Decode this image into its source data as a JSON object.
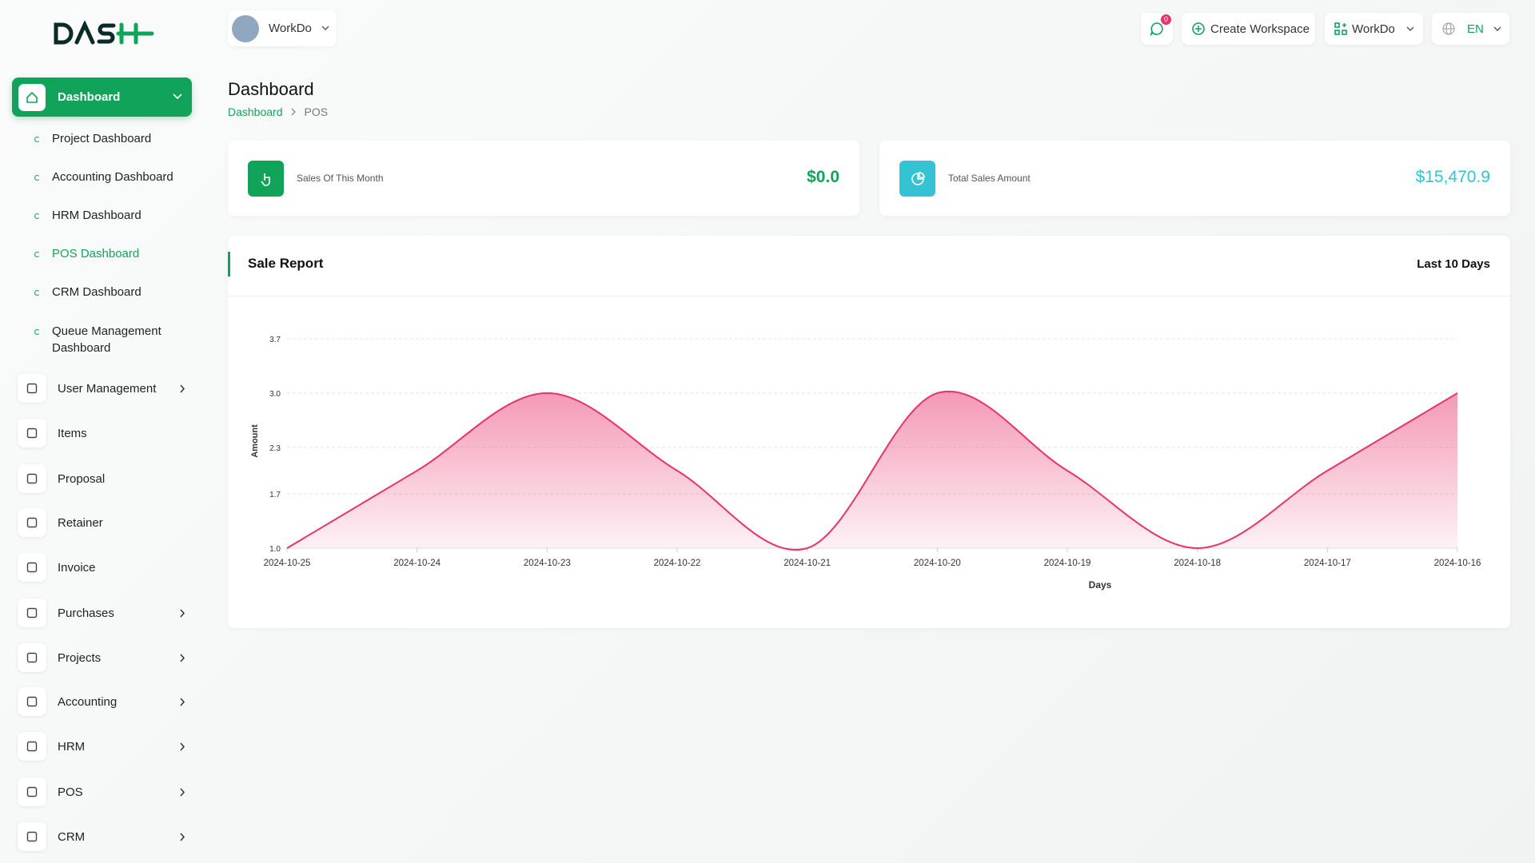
{
  "header": {
    "workspace": "WorkDo",
    "notifications": "0",
    "create_workspace": "Create Workspace",
    "user": "WorkDo",
    "language": "EN"
  },
  "sidebar": {
    "dashboard": "Dashboard",
    "submenu": [
      "Project Dashboard",
      "Accounting Dashboard",
      "HRM Dashboard",
      "POS Dashboard",
      "CRM Dashboard",
      "Queue Management Dashboard"
    ],
    "menu": [
      "User Management",
      "Items",
      "Proposal",
      "Retainer",
      "Invoice",
      "Purchases",
      "Projects",
      "Accounting",
      "HRM",
      "POS",
      "CRM"
    ]
  },
  "page": {
    "title": "Dashboard",
    "breadcrumb": [
      "Dashboard",
      "POS"
    ]
  },
  "cards": [
    {
      "label": "Sales Of This Month",
      "value": "$0.0"
    },
    {
      "label": "Total Sales Amount",
      "value": "$15,470.9"
    }
  ],
  "chart_data": {
    "type": "area",
    "title": "Sale Report",
    "period": "Last 10 Days",
    "x_label": "Days",
    "y_label": "Amount",
    "categories": [
      "2024-10-25",
      "2024-10-24",
      "2024-10-23",
      "2024-10-22",
      "2024-10-21",
      "2024-10-20",
      "2024-10-19",
      "2024-10-18",
      "2024-10-17",
      "2024-10-16"
    ],
    "values": [
      1.0,
      2.0,
      3.0,
      2.0,
      1.0,
      3.0,
      2.0,
      1.0,
      2.0,
      3.0
    ],
    "color": "#e8336c",
    "ylim": [
      1.0,
      3.7
    ],
    "yticks": [
      {
        "value": 1.0,
        "label": "1.0"
      },
      1.7,
      2.3,
      {
        "value": 3.0,
        "label": "3.0"
      },
      3.7
    ],
    "grid": true
  }
}
